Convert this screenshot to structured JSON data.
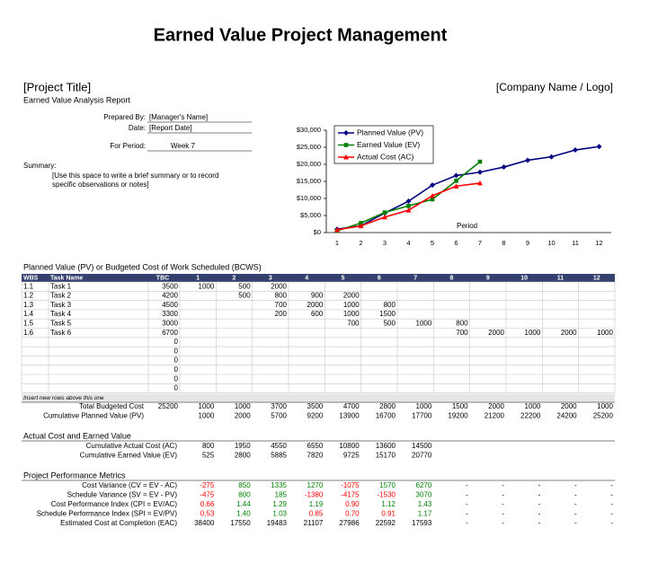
{
  "header": {
    "title": "Earned Value Project Management",
    "project_title": "[Project Title]",
    "company": "[Company Name / Logo]",
    "report_name": "Earned Value Analysis Report"
  },
  "form": {
    "fields": [
      {
        "label": "Prepared By:",
        "value": "[Manager's Name]"
      },
      {
        "label": "Date:",
        "value": "[Report Date]"
      },
      {
        "label": "For Period:",
        "value": "Week 7"
      }
    ],
    "summary_label": "Summary:",
    "summary_text": [
      "[Use this space to write a brief summary or to record",
      "specific observations or notes]"
    ]
  },
  "chart_data": {
    "type": "line",
    "x_label": "Period",
    "categories": [
      "1",
      "2",
      "3",
      "4",
      "5",
      "6",
      "7",
      "8",
      "9",
      "10",
      "11",
      "12"
    ],
    "series": [
      {
        "name": "Planned Value (PV)",
        "color": "#000080",
        "marker": "diamond",
        "values": [
          1000,
          2000,
          5700,
          9200,
          13900,
          16700,
          17700,
          19200,
          21200,
          22200,
          24200,
          25200
        ]
      },
      {
        "name": "Earned Value (EV)",
        "color": "#008000",
        "marker": "square",
        "values": [
          525,
          2800,
          5885,
          7820,
          9725,
          15170,
          20770,
          null,
          null,
          null,
          null,
          null
        ]
      },
      {
        "name": "Actual Cost (AC)",
        "color": "#ff0000",
        "marker": "triangle",
        "values": [
          800,
          1950,
          4550,
          6550,
          10800,
          13600,
          14500,
          null,
          null,
          null,
          null,
          null
        ]
      }
    ],
    "ylim": [
      0,
      30000
    ],
    "yticks": [
      {
        "value": 0,
        "label": "$0"
      },
      {
        "value": 5000,
        "label": "$5,000"
      },
      {
        "value": 10000,
        "label": "$10,000"
      },
      {
        "value": 15000,
        "label": "$15,000"
      },
      {
        "value": 20000,
        "label": "$20,000"
      },
      {
        "value": 25000,
        "label": "$25,000"
      },
      {
        "value": 30000,
        "label": "$30,000"
      }
    ],
    "grid": false,
    "legend": "top-left"
  },
  "pv_table": {
    "title": "Planned Value (PV) or Budgeted Cost of Work Scheduled (BCWS)",
    "columns": [
      "WBS",
      "Task Name",
      "TBC",
      "1",
      "2",
      "3",
      "4",
      "5",
      "6",
      "7",
      "8",
      "9",
      "10",
      "11",
      "12"
    ],
    "rows": [
      [
        "1.1",
        "Task 1",
        "3500",
        "1000",
        "500",
        "2000",
        null,
        null,
        null,
        null,
        null,
        null,
        null,
        null,
        null
      ],
      [
        "1.2",
        "Task 2",
        "4200",
        null,
        "500",
        "800",
        "900",
        "2000",
        null,
        null,
        null,
        null,
        null,
        null,
        null
      ],
      [
        "1.3",
        "Task 3",
        "4500",
        null,
        null,
        "700",
        "2000",
        "1000",
        "800",
        null,
        null,
        null,
        null,
        null,
        null
      ],
      [
        "1.4",
        "Task 4",
        "3300",
        null,
        null,
        "200",
        "600",
        "1000",
        "1500",
        null,
        null,
        null,
        null,
        null,
        null
      ],
      [
        "1.5",
        "Task 5",
        "3000",
        null,
        null,
        null,
        null,
        "700",
        "500",
        "1000",
        "800",
        null,
        null,
        null,
        null
      ],
      [
        "1.6",
        "Task 6",
        "6700",
        null,
        null,
        null,
        null,
        null,
        null,
        null,
        "700",
        "2000",
        "1000",
        "2000",
        "1000"
      ],
      [
        null,
        null,
        "0",
        null,
        null,
        null,
        null,
        null,
        null,
        null,
        null,
        null,
        null,
        null,
        null
      ],
      [
        null,
        null,
        "0",
        null,
        null,
        null,
        null,
        null,
        null,
        null,
        null,
        null,
        null,
        null,
        null
      ],
      [
        null,
        null,
        "0",
        null,
        null,
        null,
        null,
        null,
        null,
        null,
        null,
        null,
        null,
        null,
        null
      ],
      [
        null,
        null,
        "0",
        null,
        null,
        null,
        null,
        null,
        null,
        null,
        null,
        null,
        null,
        null,
        null
      ],
      [
        null,
        null,
        "0",
        null,
        null,
        null,
        null,
        null,
        null,
        null,
        null,
        null,
        null,
        null,
        null
      ],
      [
        null,
        null,
        "0",
        null,
        null,
        null,
        null,
        null,
        null,
        null,
        null,
        null,
        null,
        null,
        null
      ]
    ],
    "insert_note": "Insert new rows above this one",
    "totals": [
      {
        "label": "Total Budgeted Cost",
        "tbc": "25200",
        "values": [
          "1000",
          "1000",
          "3700",
          "3500",
          "4700",
          "2800",
          "1000",
          "1500",
          "2000",
          "1000",
          "2000",
          "1000"
        ]
      },
      {
        "label": "Cumulative Planned Value (PV)",
        "values": [
          "1000",
          "2000",
          "5700",
          "9200",
          "13900",
          "16700",
          "17700",
          "19200",
          "21200",
          "22200",
          "24200",
          "25200"
        ]
      }
    ]
  },
  "ac_ev": {
    "title": "Actual Cost and Earned Value",
    "rows": [
      {
        "label": "Cumulative Actual Cost (AC)",
        "values": [
          "800",
          "1950",
          "4550",
          "6550",
          "10800",
          "13600",
          "14500"
        ]
      },
      {
        "label": "Cumulative Earned Value (EV)",
        "values": [
          "525",
          "2800",
          "5885",
          "7820",
          "9725",
          "15170",
          "20770"
        ]
      }
    ]
  },
  "metrics": {
    "title": "Project Performance Metrics",
    "rows": [
      {
        "label": "Cost Variance (CV = EV - AC)",
        "values": [
          "-275",
          "850",
          "1335",
          "1270",
          "-1075",
          "1570",
          "6270",
          "-",
          "-",
          "-",
          "-",
          "-"
        ]
      },
      {
        "label": "Schedule Variance (SV = EV - PV)",
        "values": [
          "-475",
          "800",
          "185",
          "-1380",
          "-4175",
          "-1530",
          "3070",
          "-",
          "-",
          "-",
          "-",
          "-"
        ]
      },
      {
        "label": "Cost Performance Index (CPI = EV/AC)",
        "values": [
          "0.66",
          "1.44",
          "1.29",
          "1.19",
          "0.90",
          "1.12",
          "1.43",
          "-",
          "-",
          "-",
          "-",
          "-"
        ]
      },
      {
        "label": "Schedule Performance Index (SPI = EV/PV)",
        "values": [
          "0.53",
          "1.40",
          "1.03",
          "0.85",
          "0.70",
          "0.91",
          "1.17",
          "-",
          "-",
          "-",
          "-",
          "-"
        ]
      },
      {
        "label": "Estimated Cost at Completion (EAC)",
        "values": [
          "38400",
          "17550",
          "19483",
          "21107",
          "27986",
          "22592",
          "17593",
          "-",
          "-",
          "-",
          "-",
          "-"
        ]
      }
    ]
  }
}
